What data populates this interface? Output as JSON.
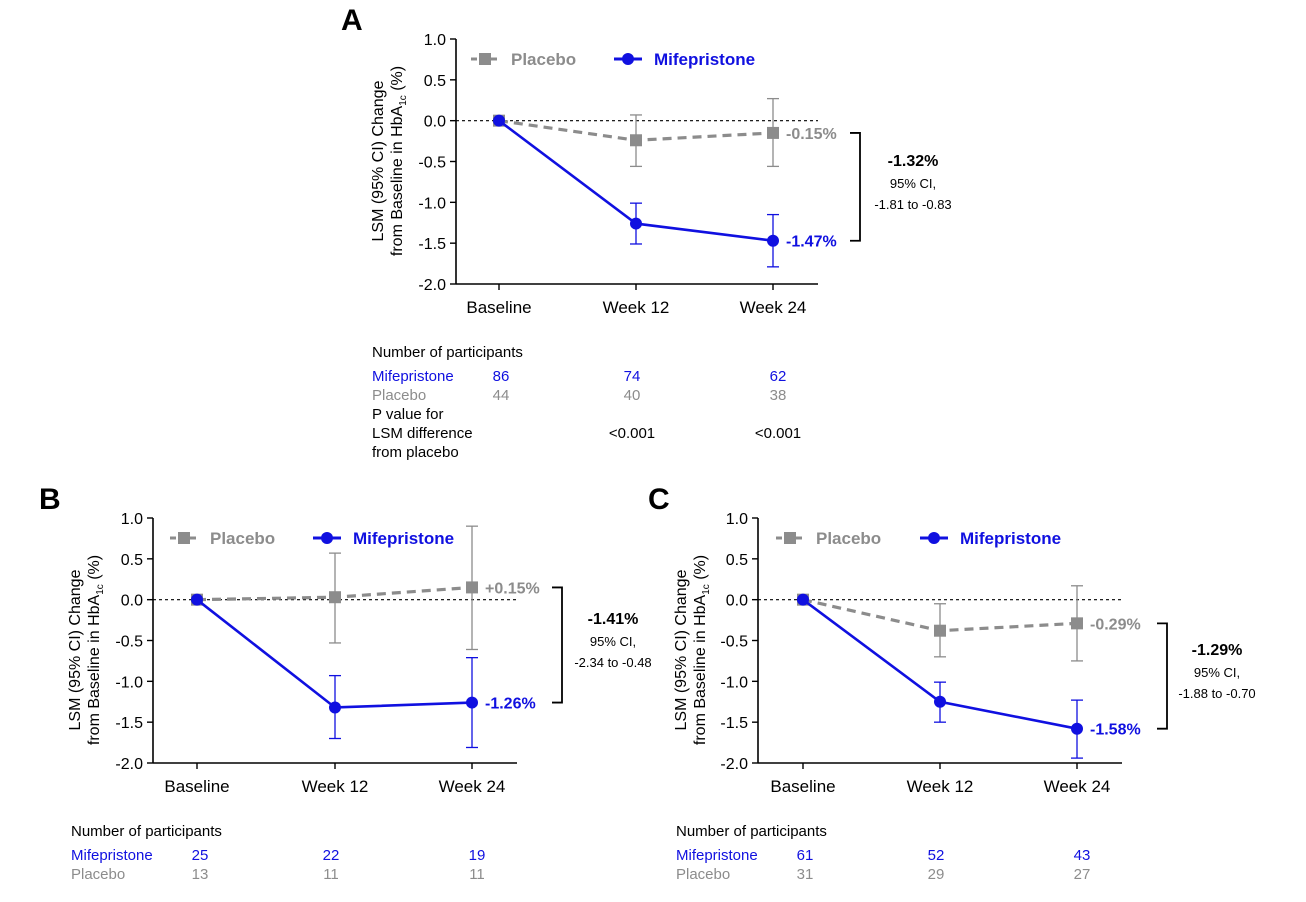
{
  "colors": {
    "placebo": "#8c8c8c",
    "mifepristone": "#1010e0",
    "axis": "#000000",
    "zero_line": "#000000"
  },
  "chart_data": [
    {
      "type": "line",
      "panel_label": "A",
      "ylabel_line1": "LSM (95% CI) Change",
      "ylabel_line2_pre": "from Baseline in HbA",
      "ylabel_sub": "1c",
      "ylabel_line2_post": " (%)",
      "ylim": [
        -2.0,
        1.0
      ],
      "yticks": [
        "1.0",
        "0.5",
        "0.0",
        "-0.5",
        "-1.0",
        "-1.5",
        "-2.0"
      ],
      "ytick_values": [
        1.0,
        0.5,
        0.0,
        -0.5,
        -1.0,
        -1.5,
        -2.0
      ],
      "categories": [
        "Baseline",
        "Week 12",
        "Week 24"
      ],
      "grid": false,
      "legend_placement": "top-left",
      "series": [
        {
          "name": "Placebo",
          "style": "dashed",
          "marker": "square",
          "values": [
            0.0,
            -0.24,
            -0.15
          ],
          "ci_low": [
            0.0,
            -0.56,
            -0.56
          ],
          "ci_high": [
            0.0,
            0.07,
            0.27
          ],
          "end_label": "-0.15%"
        },
        {
          "name": "Mifepristone",
          "style": "solid",
          "marker": "circle",
          "values": [
            0.0,
            -1.26,
            -1.47
          ],
          "ci_low": [
            0.0,
            -1.51,
            -1.79
          ],
          "ci_high": [
            0.0,
            -1.01,
            -1.15
          ],
          "end_label": "-1.47%"
        }
      ],
      "difference": {
        "value": "-1.32%",
        "ci_label": "95% CI,",
        "ci_range": "-1.81 to -0.83"
      },
      "participants": {
        "header": "Number of participants",
        "rows": [
          {
            "label": "Mifepristone",
            "values": [
              "86",
              "74",
              "62"
            ]
          },
          {
            "label": "Placebo",
            "values": [
              "44",
              "40",
              "38"
            ]
          }
        ],
        "pvalue_label": [
          "P value for",
          "LSM difference",
          "from placebo"
        ],
        "pvalues": [
          "",
          "<0.001",
          "<0.001"
        ]
      }
    },
    {
      "type": "line",
      "panel_label": "B",
      "ylabel_line1": "LSM (95% CI) Change",
      "ylabel_line2_pre": "from Baseline in HbA",
      "ylabel_sub": "1c",
      "ylabel_line2_post": " (%)",
      "ylim": [
        -2.0,
        1.0
      ],
      "yticks": [
        "1.0",
        "0.5",
        "0.0",
        "-0.5",
        "-1.0",
        "-1.5",
        "-2.0"
      ],
      "ytick_values": [
        1.0,
        0.5,
        0.0,
        -0.5,
        -1.0,
        -1.5,
        -2.0
      ],
      "categories": [
        "Baseline",
        "Week 12",
        "Week 24"
      ],
      "grid": false,
      "legend_placement": "top-left",
      "series": [
        {
          "name": "Placebo",
          "style": "dashed",
          "marker": "square",
          "values": [
            0.0,
            0.03,
            0.15
          ],
          "ci_low": [
            0.0,
            -0.53,
            -0.61
          ],
          "ci_high": [
            0.0,
            0.57,
            0.9
          ],
          "end_label": "+0.15%"
        },
        {
          "name": "Mifepristone",
          "style": "solid",
          "marker": "circle",
          "values": [
            0.0,
            -1.32,
            -1.26
          ],
          "ci_low": [
            0.0,
            -1.7,
            -1.81
          ],
          "ci_high": [
            0.0,
            -0.93,
            -0.71
          ],
          "end_label": "-1.26%"
        }
      ],
      "difference": {
        "value": "-1.41%",
        "ci_label": "95% CI,",
        "ci_range": "-2.34 to -0.48"
      },
      "participants": {
        "header": "Number of participants",
        "rows": [
          {
            "label": "Mifepristone",
            "values": [
              "25",
              "22",
              "19"
            ]
          },
          {
            "label": "Placebo",
            "values": [
              "13",
              "11",
              "11"
            ]
          }
        ]
      }
    },
    {
      "type": "line",
      "panel_label": "C",
      "ylabel_line1": "LSM (95% CI) Change",
      "ylabel_line2_pre": "from Baseline in HbA",
      "ylabel_sub": "1c",
      "ylabel_line2_post": " (%)",
      "ylim": [
        -2.0,
        1.0
      ],
      "yticks": [
        "1.0",
        "0.5",
        "0.0",
        "-0.5",
        "-1.0",
        "-1.5",
        "-2.0"
      ],
      "ytick_values": [
        1.0,
        0.5,
        0.0,
        -0.5,
        -1.0,
        -1.5,
        -2.0
      ],
      "categories": [
        "Baseline",
        "Week 12",
        "Week 24"
      ],
      "grid": false,
      "legend_placement": "top-left",
      "series": [
        {
          "name": "Placebo",
          "style": "dashed",
          "marker": "square",
          "values": [
            0.0,
            -0.38,
            -0.29
          ],
          "ci_low": [
            0.0,
            -0.7,
            -0.75
          ],
          "ci_high": [
            0.0,
            -0.05,
            0.17
          ],
          "end_label": "-0.29%"
        },
        {
          "name": "Mifepristone",
          "style": "solid",
          "marker": "circle",
          "values": [
            0.0,
            -1.25,
            -1.58
          ],
          "ci_low": [
            0.0,
            -1.5,
            -1.94
          ],
          "ci_high": [
            0.0,
            -1.01,
            -1.23
          ],
          "end_label": "-1.58%"
        }
      ],
      "difference": {
        "value": "-1.29%",
        "ci_label": "95% CI,",
        "ci_range": "-1.88 to -0.70"
      },
      "participants": {
        "header": "Number of participants",
        "rows": [
          {
            "label": "Mifepristone",
            "values": [
              "61",
              "52",
              "43"
            ]
          },
          {
            "label": "Placebo",
            "values": [
              "31",
              "29",
              "27"
            ]
          }
        ]
      }
    }
  ]
}
